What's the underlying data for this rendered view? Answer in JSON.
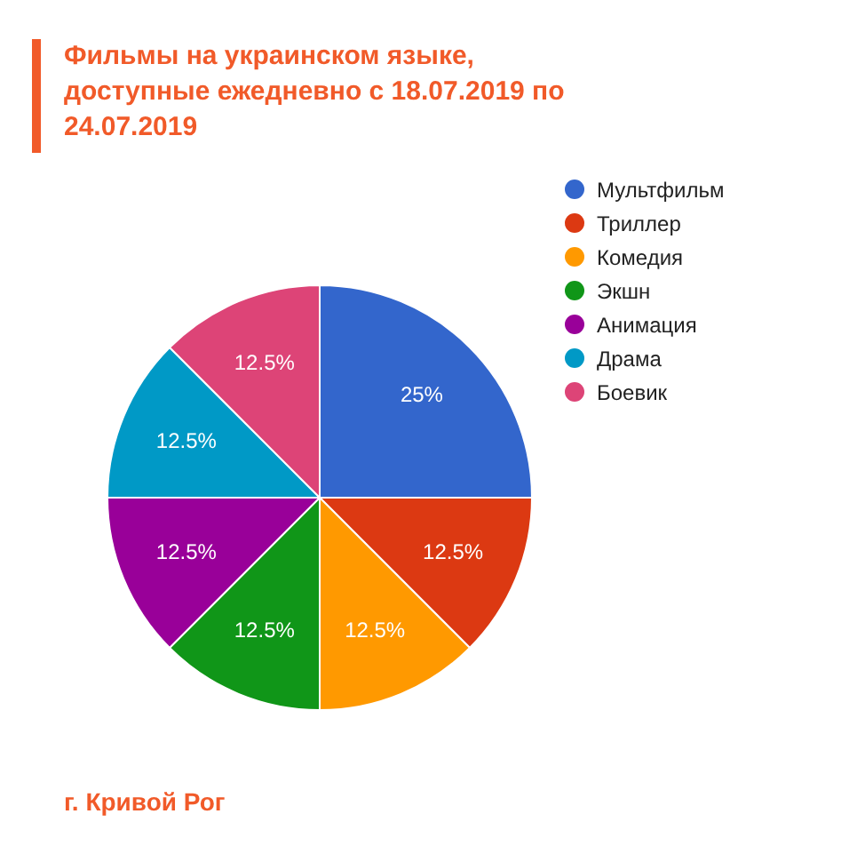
{
  "chart_data": {
    "type": "pie",
    "title": "Фильмы на украинском языке, доступные ежедневно с 18.07.2019 по 24.07.2019",
    "categories": [
      "Мультфильм",
      "Триллер",
      "Комедия",
      "Экшн",
      "Анимация",
      "Драма",
      "Боевик"
    ],
    "values": [
      25,
      12.5,
      12.5,
      12.5,
      12.5,
      12.5,
      12.5
    ],
    "colors": [
      "#3366cc",
      "#dc3912",
      "#ff9900",
      "#109618",
      "#990099",
      "#0099c6",
      "#dd4477"
    ],
    "value_labels": [
      "25%",
      "12.5%",
      "12.5%",
      "12.5%",
      "12.5%",
      "12.5%",
      "12.5%"
    ],
    "legend": "top right",
    "annotations": [
      "г. Кривой Рог"
    ]
  }
}
